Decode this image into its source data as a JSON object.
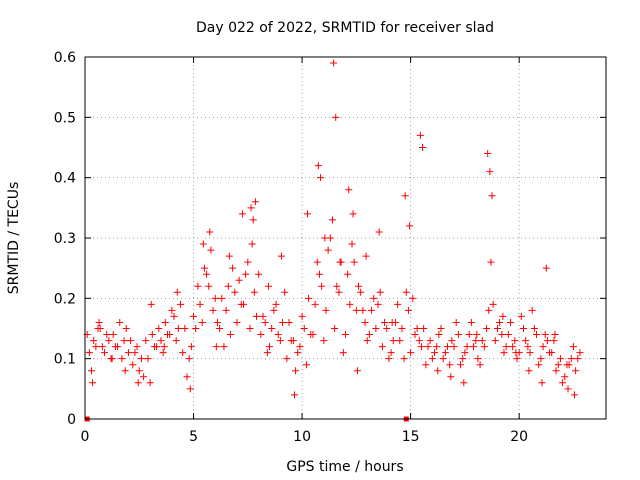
{
  "chart_data": {
    "type": "scatter",
    "title": "Day 022 of 2022, SRMTID for receiver slad",
    "xlabel": "GPS time / hours",
    "ylabel": "SRMTID / TECUs",
    "xlim": [
      0,
      24
    ],
    "ylim": [
      0,
      0.6
    ],
    "xticks": [
      0,
      5,
      10,
      15,
      20
    ],
    "yticks": [
      0,
      0.1,
      0.2,
      0.3,
      0.4,
      0.5,
      0.6
    ],
    "xtick_labels": [
      "0",
      "5",
      "10",
      "15",
      "20"
    ],
    "ytick_labels": [
      "0",
      "0.1",
      "0.2",
      "0.3",
      "0.4",
      "0.5",
      "0.6"
    ],
    "grid": true,
    "marker": "+",
    "series_color": "#ff0000",
    "series": [
      {
        "name": "SRMTID",
        "x": [
          0.1,
          0.3,
          0.5,
          0.7,
          0.9,
          1.1,
          1.3,
          1.5,
          1.7,
          1.9,
          2.1,
          2.3,
          2.5,
          2.7,
          2.9,
          3.1,
          3.3,
          3.5,
          3.7,
          3.9,
          4.1,
          4.3,
          4.5,
          4.7,
          4.9,
          5.1,
          5.3,
          5.5,
          5.7,
          5.9,
          6.1,
          6.3,
          6.5,
          6.7,
          6.9,
          7.1,
          7.3,
          7.5,
          7.7,
          7.9,
          8.1,
          8.3,
          8.5,
          8.7,
          8.9,
          9.1,
          9.3,
          9.5,
          9.7,
          9.9,
          10.1,
          10.3,
          10.5,
          10.7,
          10.9,
          11.1,
          11.3,
          11.5,
          11.7,
          11.9,
          12.1,
          12.3,
          12.5,
          12.7,
          12.9,
          13.1,
          13.3,
          13.5,
          13.7,
          13.9,
          14.1,
          14.3,
          14.5,
          14.7,
          14.9,
          15.1,
          15.3,
          15.5,
          15.7,
          15.9,
          16.1,
          16.3,
          16.5,
          16.7,
          16.9,
          17.1,
          17.3,
          17.5,
          17.7,
          17.9,
          18.1,
          18.3,
          18.5,
          18.7,
          18.9,
          19.1,
          19.3,
          19.5,
          19.7,
          19.9,
          20.1,
          20.3,
          20.5,
          20.7,
          20.9,
          21.1,
          21.3,
          21.5,
          21.7,
          21.9,
          22.1,
          22.3,
          22.5,
          22.7,
          0.2,
          0.4,
          0.6,
          0.8,
          1.0,
          1.2,
          1.4,
          1.6,
          1.8,
          2.0,
          2.2,
          2.4,
          2.6,
          2.8,
          3.0,
          3.2,
          3.4,
          3.6,
          3.8,
          4.0,
          4.2,
          4.4,
          4.6,
          4.8,
          5.0,
          5.2,
          5.4,
          5.6,
          5.8,
          6.0,
          6.2,
          6.4,
          6.6,
          6.8,
          7.0,
          7.2,
          7.4,
          7.6,
          7.8,
          8.0,
          8.2,
          8.4,
          8.6,
          8.8,
          9.0,
          9.2,
          9.4,
          9.6,
          9.8,
          10.0,
          10.2,
          10.4,
          10.6,
          10.8,
          11.0,
          11.2,
          11.4,
          11.6,
          11.8,
          12.0,
          12.2,
          12.4,
          12.6,
          12.8,
          13.0,
          13.2,
          13.4,
          13.6,
          13.8,
          14.0,
          14.2,
          14.4,
          14.6,
          14.8,
          15.0,
          15.2,
          15.4,
          15.6,
          15.8,
          16.0,
          16.2,
          16.4,
          16.6,
          16.8,
          17.0,
          17.2,
          17.4,
          17.6,
          17.8,
          18.0,
          18.2,
          18.4,
          18.6,
          18.8,
          19.0,
          19.2,
          19.4,
          19.6,
          19.8,
          20.0,
          20.2,
          20.4,
          20.6,
          20.8,
          21.0,
          21.2,
          21.4,
          21.6,
          21.8,
          22.0,
          22.2,
          22.4,
          22.6,
          22.8,
          0.35,
          0.65,
          1.25,
          1.85,
          2.45,
          3.05,
          3.65,
          4.25,
          4.85,
          5.45,
          5.75,
          6.05,
          6.65,
          7.25,
          7.65,
          7.75,
          7.85,
          8.45,
          9.05,
          9.65,
          10.25,
          10.75,
          10.85,
          11.05,
          11.45,
          11.55,
          11.75,
          12.15,
          12.35,
          12.55,
          12.95,
          13.55,
          14.15,
          14.75,
          14.95,
          15.45,
          15.55,
          16.25,
          16.85,
          17.45,
          18.05,
          18.55,
          18.65,
          18.75,
          19.25,
          19.85,
          20.45,
          21.05,
          21.25,
          21.65,
          22.25,
          22.55
        ],
        "y": [
          0.14,
          0.08,
          0.12,
          0.15,
          0.11,
          0.13,
          0.14,
          0.12,
          0.1,
          0.15,
          0.13,
          0.11,
          0.08,
          0.07,
          0.1,
          0.14,
          0.12,
          0.13,
          0.16,
          0.14,
          0.17,
          0.15,
          0.11,
          0.07,
          0.12,
          0.15,
          0.19,
          0.25,
          0.22,
          0.18,
          0.16,
          0.2,
          0.18,
          0.14,
          0.21,
          0.23,
          0.19,
          0.26,
          0.29,
          0.17,
          0.14,
          0.16,
          0.12,
          0.18,
          0.14,
          0.16,
          0.1,
          0.13,
          0.08,
          0.12,
          0.15,
          0.2,
          0.14,
          0.26,
          0.22,
          0.18,
          0.3,
          0.15,
          0.21,
          0.11,
          0.24,
          0.29,
          0.18,
          0.21,
          0.16,
          0.14,
          0.2,
          0.19,
          0.12,
          0.15,
          0.11,
          0.16,
          0.13,
          0.1,
          0.18,
          0.2,
          0.15,
          0.12,
          0.09,
          0.13,
          0.11,
          0.14,
          0.1,
          0.12,
          0.13,
          0.16,
          0.09,
          0.11,
          0.14,
          0.12,
          0.1,
          0.13,
          0.15,
          0.26,
          0.13,
          0.16,
          0.11,
          0.14,
          0.12,
          0.1,
          0.17,
          0.13,
          0.11,
          0.15,
          0.09,
          0.12,
          0.13,
          0.11,
          0.08,
          0.1,
          0.07,
          0.09,
          0.12,
          0.1,
          0.11,
          0.13,
          0.15,
          0.12,
          0.14,
          0.1,
          0.12,
          0.16,
          0.13,
          0.11,
          0.09,
          0.12,
          0.1,
          0.13,
          0.06,
          0.12,
          0.15,
          0.11,
          0.14,
          0.18,
          0.13,
          0.19,
          0.15,
          0.1,
          0.17,
          0.22,
          0.16,
          0.24,
          0.28,
          0.2,
          0.15,
          0.12,
          0.22,
          0.25,
          0.16,
          0.19,
          0.24,
          0.15,
          0.21,
          0.24,
          0.17,
          0.11,
          0.15,
          0.19,
          0.13,
          0.21,
          0.16,
          0.13,
          0.11,
          0.17,
          0.09,
          0.14,
          0.19,
          0.24,
          0.13,
          0.28,
          0.33,
          0.22,
          0.26,
          0.14,
          0.19,
          0.26,
          0.22,
          0.18,
          0.13,
          0.18,
          0.15,
          0.21,
          0.16,
          0.1,
          0.13,
          0.19,
          0.15,
          0.21,
          0.11,
          0.14,
          0.13,
          0.15,
          0.12,
          0.1,
          0.12,
          0.15,
          0.11,
          0.09,
          0.12,
          0.14,
          0.1,
          0.12,
          0.16,
          0.13,
          0.09,
          0.12,
          0.18,
          0.19,
          0.15,
          0.14,
          0.12,
          0.16,
          0.13,
          0.11,
          0.15,
          0.12,
          0.18,
          0.14,
          0.1,
          0.14,
          0.11,
          0.13,
          0.09,
          0.06,
          0.09,
          0.1,
          0.08,
          0.11,
          0.06,
          0.16,
          0.1,
          0.08,
          0.06,
          0.19,
          0.12,
          0.21,
          0.05,
          0.29,
          0.31,
          0.12,
          0.27,
          0.34,
          0.35,
          0.33,
          0.36,
          0.22,
          0.27,
          0.04,
          0.34,
          0.42,
          0.4,
          0.3,
          0.59,
          0.5,
          0.26,
          0.38,
          0.34,
          0.08,
          0.27,
          0.31,
          0.16,
          0.37,
          0.32,
          0.47,
          0.45,
          0.08,
          0.07,
          0.06,
          0.14,
          0.44,
          0.41,
          0.37,
          0.17,
          0.11,
          0.08,
          0.06,
          0.25,
          0.14,
          0.05,
          0.04
        ]
      }
    ],
    "axis_markers": [
      {
        "x": 0.1,
        "y": 0
      },
      {
        "x": 14.8,
        "y": 0
      }
    ]
  }
}
